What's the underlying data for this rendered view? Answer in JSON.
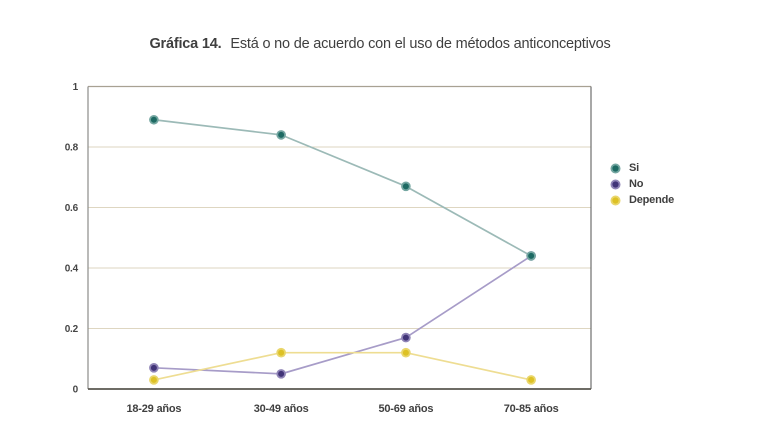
{
  "title": {
    "prefix": "Gráfica 14.",
    "text": "Está o no de acuerdo con el uso de métodos anticonceptivos"
  },
  "chart_data": {
    "type": "line",
    "title": "Gráfica 14. Está o no de acuerdo con el uso de métodos anticonceptivos",
    "xlabel": "",
    "ylabel": "",
    "categories": [
      "18-29 años",
      "30-49 años",
      "50-69 años",
      "70-85 años"
    ],
    "series": [
      {
        "name": "Si",
        "values": [
          0.89,
          0.84,
          0.67,
          0.44
        ],
        "color": "#1d6a63",
        "ring": "#74a6a1",
        "line": "#9cbab7"
      },
      {
        "name": "No",
        "values": [
          0.07,
          0.05,
          0.17,
          0.44
        ],
        "color": "#413478",
        "ring": "#8f84b6",
        "line": "#a79cc8"
      },
      {
        "name": "Depende",
        "values": [
          0.03,
          0.12,
          0.12,
          0.03
        ],
        "color": "#ddc125",
        "ring": "#e9d66b",
        "line": "#eedd92"
      }
    ],
    "ylim": [
      0,
      1
    ],
    "yticks": [
      0,
      0.2,
      0.4,
      0.6,
      0.8,
      1
    ],
    "ytick_labels": [
      "0",
      "0.2",
      "0.4",
      "0.6",
      "0.8",
      "1"
    ],
    "grid": "horizontal",
    "legend_position": "right"
  },
  "colors": {
    "grid": "#ded6c1",
    "spine_top": "#a8a193",
    "spine_left": "#8c8c8a",
    "spine_right": "#6f6f6d",
    "spine_bottom": "#5a574f",
    "text": "#3f3f3f",
    "background": "#ffffff"
  }
}
